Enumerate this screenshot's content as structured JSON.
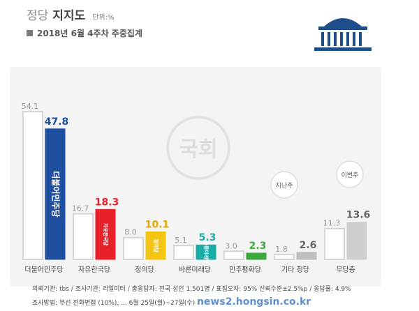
{
  "header": {
    "title_light": "정당",
    "title_bold": "지지도",
    "unit": "단위:%",
    "subtitle": "2018년 6월 4주차 주중집계"
  },
  "colors": {
    "prev": "#ffffff",
    "prev_border": "#d4d4d4",
    "panel": "#f4f4f4",
    "assembly": "#1f4e8c"
  },
  "chart_data": {
    "type": "bar",
    "categories": [
      "더불어민주당",
      "자유한국당",
      "정의당",
      "바른미래당",
      "민주평화당",
      "기타 정당",
      "무당층"
    ],
    "series": [
      {
        "values": [
          54.1,
          16.7,
          8.0,
          5.1,
          3.0,
          1.8,
          11.3
        ],
        "color": "#ffffff"
      },
      {
        "values": [
          47.8,
          18.3,
          10.1,
          5.3,
          2.3,
          2.6,
          13.6
        ],
        "colors": [
          "#1f4fa0",
          "#e8202a",
          "#f4c613",
          "#1aaba8",
          "#3aa83b",
          "#bdbdbd",
          "#cfcfcf"
        ],
        "label_colors": [
          "#1f4fa0",
          "#e8202a",
          "#e0a800",
          "#1aaba8",
          "#3aa83b",
          "#666666",
          "#666666"
        ]
      }
    ],
    "bar_logos": [
      "더불어민주당",
      "자유한국당",
      "정의당",
      "바른미래당",
      "",
      "",
      ""
    ],
    "bubbles": [
      "지난주",
      "이번주"
    ],
    "ylim": [
      0,
      60
    ]
  },
  "watermark": "국회",
  "footer": {
    "line1": "의뢰기관: tbs / 조사기관: 리얼미터 / 총응답자: 전국 성인 1,501명 / 표집오차: 95% 신뢰수준±2.5%p / 응답률: 4.9%",
    "line2": "조사방법: 무선 전화면접 (10%), ... 6월 25일(월)~27일(수)",
    "overlay": "news2.hongsin.co.kr"
  }
}
